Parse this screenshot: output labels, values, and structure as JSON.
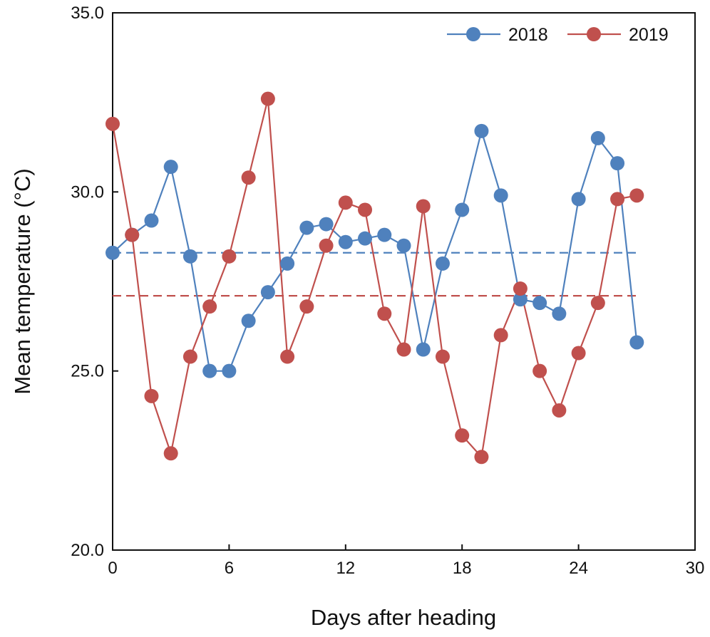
{
  "chart_data": {
    "type": "line",
    "title": "",
    "xlabel": "Days after heading",
    "ylabel": "Mean temperature (°C)",
    "xlim": [
      0,
      30
    ],
    "ylim": [
      20,
      35
    ],
    "xticks": [
      0,
      6,
      12,
      18,
      24,
      30
    ],
    "yticks": [
      20,
      25,
      30,
      35
    ],
    "ytick_labels": [
      "20.0",
      "25.0",
      "30.0",
      "35.0"
    ],
    "grid": false,
    "legend_position": "top-right",
    "x": [
      0,
      1,
      2,
      3,
      4,
      5,
      6,
      7,
      8,
      9,
      10,
      11,
      12,
      13,
      14,
      15,
      16,
      17,
      18,
      19,
      20,
      21,
      22,
      23,
      24,
      25,
      26,
      27
    ],
    "series": [
      {
        "name": "2018",
        "color": "#4f81bd",
        "values": [
          28.3,
          28.8,
          29.2,
          30.7,
          28.2,
          25.0,
          25.0,
          26.4,
          27.2,
          28.0,
          29.0,
          29.1,
          28.6,
          28.7,
          28.8,
          28.5,
          25.6,
          28.0,
          29.5,
          31.7,
          29.9,
          27.0,
          26.9,
          26.6,
          29.8,
          31.5,
          30.8,
          25.8
        ],
        "mean": 28.3
      },
      {
        "name": "2019",
        "color": "#c0504d",
        "values": [
          31.9,
          28.8,
          24.3,
          22.7,
          25.4,
          26.8,
          28.2,
          30.4,
          32.6,
          25.4,
          26.8,
          28.5,
          29.7,
          29.5,
          26.6,
          25.6,
          29.6,
          25.4,
          23.2,
          22.6,
          26.0,
          27.3,
          25.0,
          23.9,
          25.5,
          26.9,
          29.8,
          29.9
        ],
        "mean": 27.1
      }
    ]
  }
}
